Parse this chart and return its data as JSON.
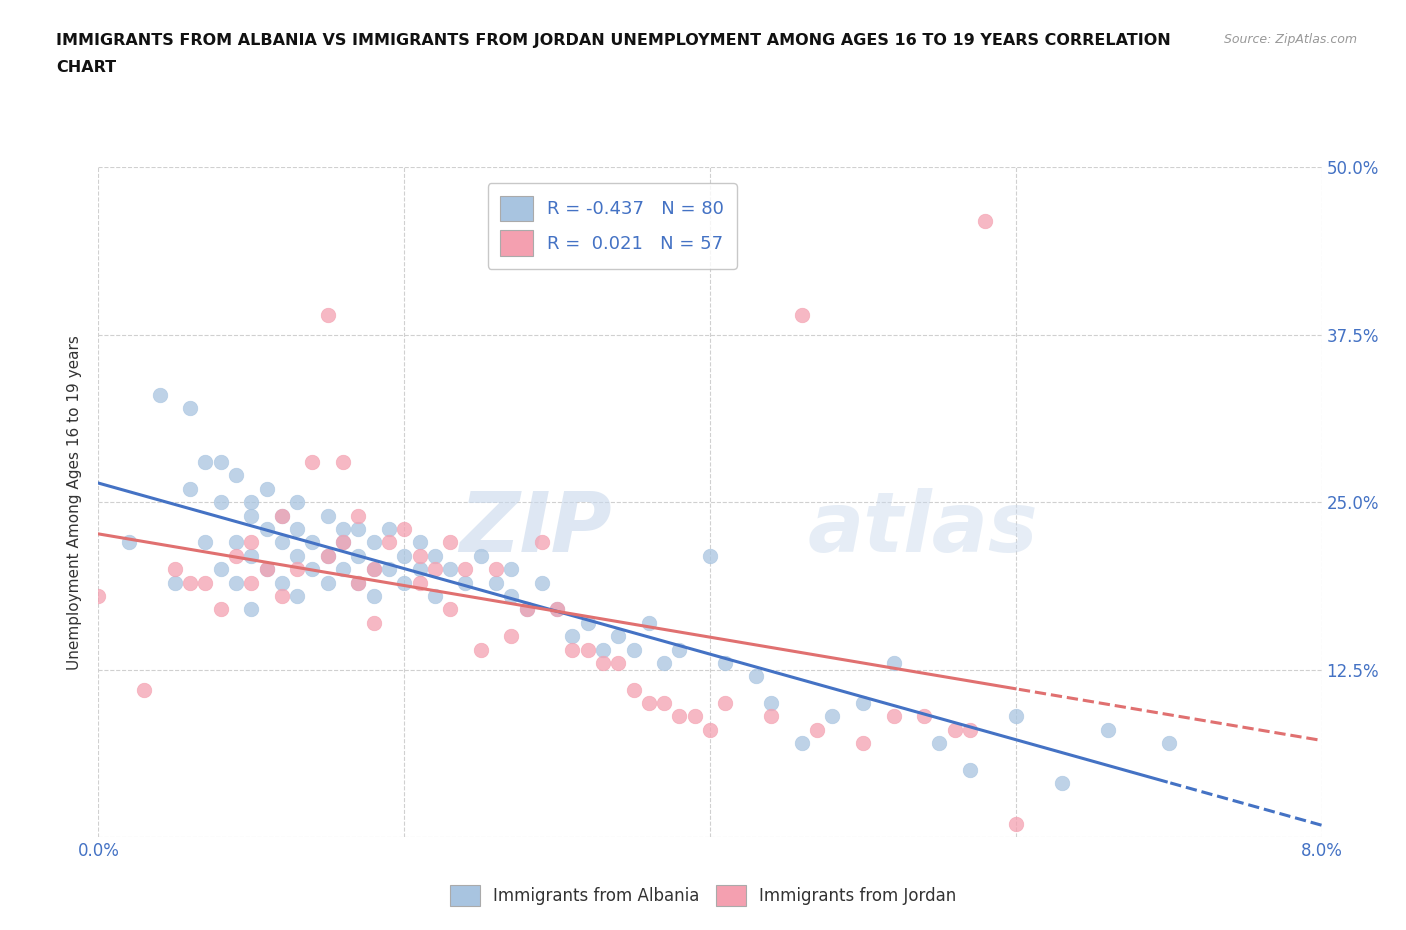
{
  "title_line1": "IMMIGRANTS FROM ALBANIA VS IMMIGRANTS FROM JORDAN UNEMPLOYMENT AMONG AGES 16 TO 19 YEARS CORRELATION",
  "title_line2": "CHART",
  "source": "Source: ZipAtlas.com",
  "ylabel": "Unemployment Among Ages 16 to 19 years",
  "xlim": [
    0.0,
    0.08
  ],
  "ylim": [
    0.0,
    0.5
  ],
  "xticks": [
    0.0,
    0.02,
    0.04,
    0.06,
    0.08
  ],
  "yticks": [
    0.0,
    0.125,
    0.25,
    0.375,
    0.5
  ],
  "xticklabels": [
    "0.0%",
    "",
    "",
    "",
    "8.0%"
  ],
  "yticklabels_right": [
    "",
    "12.5%",
    "25.0%",
    "37.5%",
    "50.0%"
  ],
  "albania_color": "#a8c4e0",
  "jordan_color": "#f4a0b0",
  "albania_R": -0.437,
  "albania_N": 80,
  "jordan_R": 0.021,
  "jordan_N": 57,
  "watermark_zip": "ZIP",
  "watermark_atlas": "atlas",
  "background_color": "#ffffff",
  "grid_color": "#d0d0d0",
  "albania_line_color": "#4472c4",
  "jordan_line_color": "#e07070",
  "albania_scatter_x": [
    0.002,
    0.004,
    0.005,
    0.006,
    0.006,
    0.007,
    0.007,
    0.008,
    0.008,
    0.008,
    0.009,
    0.009,
    0.009,
    0.01,
    0.01,
    0.01,
    0.01,
    0.011,
    0.011,
    0.011,
    0.012,
    0.012,
    0.012,
    0.013,
    0.013,
    0.013,
    0.013,
    0.014,
    0.014,
    0.015,
    0.015,
    0.015,
    0.016,
    0.016,
    0.016,
    0.017,
    0.017,
    0.017,
    0.018,
    0.018,
    0.018,
    0.019,
    0.019,
    0.02,
    0.02,
    0.021,
    0.021,
    0.022,
    0.022,
    0.023,
    0.024,
    0.025,
    0.026,
    0.027,
    0.027,
    0.028,
    0.029,
    0.03,
    0.031,
    0.032,
    0.033,
    0.034,
    0.035,
    0.036,
    0.037,
    0.038,
    0.04,
    0.041,
    0.043,
    0.044,
    0.046,
    0.048,
    0.05,
    0.052,
    0.055,
    0.057,
    0.06,
    0.063,
    0.066,
    0.07
  ],
  "albania_scatter_y": [
    0.22,
    0.33,
    0.19,
    0.32,
    0.26,
    0.28,
    0.22,
    0.25,
    0.2,
    0.28,
    0.22,
    0.27,
    0.19,
    0.24,
    0.21,
    0.25,
    0.17,
    0.23,
    0.2,
    0.26,
    0.22,
    0.19,
    0.24,
    0.21,
    0.23,
    0.18,
    0.25,
    0.22,
    0.2,
    0.24,
    0.21,
    0.19,
    0.23,
    0.2,
    0.22,
    0.21,
    0.19,
    0.23,
    0.2,
    0.22,
    0.18,
    0.2,
    0.23,
    0.21,
    0.19,
    0.2,
    0.22,
    0.21,
    0.18,
    0.2,
    0.19,
    0.21,
    0.19,
    0.18,
    0.2,
    0.17,
    0.19,
    0.17,
    0.15,
    0.16,
    0.14,
    0.15,
    0.14,
    0.16,
    0.13,
    0.14,
    0.21,
    0.13,
    0.12,
    0.1,
    0.07,
    0.09,
    0.1,
    0.13,
    0.07,
    0.05,
    0.09,
    0.04,
    0.08,
    0.07
  ],
  "jordan_scatter_x": [
    0.0,
    0.003,
    0.005,
    0.006,
    0.007,
    0.008,
    0.009,
    0.01,
    0.01,
    0.011,
    0.012,
    0.012,
    0.013,
    0.014,
    0.015,
    0.015,
    0.016,
    0.016,
    0.017,
    0.017,
    0.018,
    0.018,
    0.019,
    0.02,
    0.021,
    0.021,
    0.022,
    0.023,
    0.023,
    0.024,
    0.025,
    0.026,
    0.027,
    0.028,
    0.029,
    0.03,
    0.031,
    0.032,
    0.033,
    0.034,
    0.035,
    0.036,
    0.037,
    0.038,
    0.039,
    0.04,
    0.041,
    0.044,
    0.046,
    0.047,
    0.05,
    0.052,
    0.054,
    0.056,
    0.057,
    0.058,
    0.06
  ],
  "jordan_scatter_y": [
    0.18,
    0.11,
    0.2,
    0.19,
    0.19,
    0.17,
    0.21,
    0.19,
    0.22,
    0.2,
    0.24,
    0.18,
    0.2,
    0.28,
    0.21,
    0.39,
    0.22,
    0.28,
    0.24,
    0.19,
    0.2,
    0.16,
    0.22,
    0.23,
    0.21,
    0.19,
    0.2,
    0.17,
    0.22,
    0.2,
    0.14,
    0.2,
    0.15,
    0.17,
    0.22,
    0.17,
    0.14,
    0.14,
    0.13,
    0.13,
    0.11,
    0.1,
    0.1,
    0.09,
    0.09,
    0.08,
    0.1,
    0.09,
    0.39,
    0.08,
    0.07,
    0.09,
    0.09,
    0.08,
    0.08,
    0.46,
    0.01
  ]
}
